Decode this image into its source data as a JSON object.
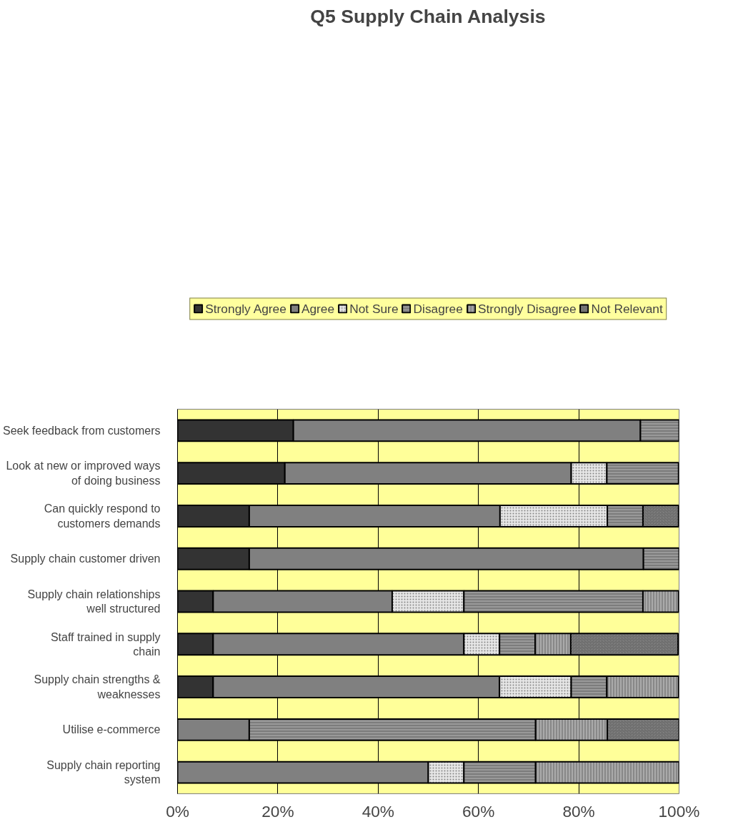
{
  "chart_data": {
    "type": "bar",
    "orientation": "horizontal",
    "stacked": true,
    "title": "Q5 Supply Chain Analysis",
    "categories": [
      "Seek feedback from customers",
      "Look at new or improved ways of doing business",
      "Can quickly respond to customers demands",
      "Supply chain customer driven",
      "Supply chain relationships well structured",
      "Staff trained in supply chain",
      "Supply chain strengths & weaknesses",
      "Utilise e-commerce",
      "Supply chain reporting system"
    ],
    "series": [
      {
        "name": "Strongly Agree",
        "color": "#333333",
        "values": [
          23.1,
          21.4,
          14.3,
          14.3,
          7.1,
          7.1,
          7.1,
          null,
          null
        ]
      },
      {
        "name": "Agree",
        "color": "#808080",
        "values": [
          69.2,
          57.1,
          50.0,
          78.6,
          35.7,
          50.0,
          57.1,
          14.3,
          50.0
        ]
      },
      {
        "name": "Not Sure",
        "color": "#e6e6e6",
        "values": [
          null,
          7.1,
          21.4,
          null,
          14.3,
          7.1,
          14.3,
          null,
          7.1
        ]
      },
      {
        "name": "Disagree",
        "color": "#999999",
        "values": [
          7.7,
          14.3,
          7.1,
          7.1,
          35.7,
          7.1,
          7.1,
          57.1,
          14.3
        ]
      },
      {
        "name": "Strongly Disagree",
        "color": "#aaaaaa",
        "values": [
          null,
          null,
          null,
          null,
          7.1,
          7.1,
          14.3,
          14.3,
          28.6
        ]
      },
      {
        "name": "Not Relevant",
        "color": "#8c8c8c",
        "values": [
          null,
          null,
          7.1,
          null,
          null,
          21.4,
          null,
          14.3,
          null
        ]
      }
    ],
    "xlim": [
      0,
      100
    ],
    "xticks": [
      {
        "value": 0,
        "label": "0%"
      },
      {
        "value": 20,
        "label": "20%"
      },
      {
        "value": 40,
        "label": "40%"
      },
      {
        "value": 60,
        "label": "60%"
      },
      {
        "value": 80,
        "label": "80%"
      },
      {
        "value": 100,
        "label": "100%"
      }
    ],
    "grid": "x",
    "legend": "top"
  }
}
